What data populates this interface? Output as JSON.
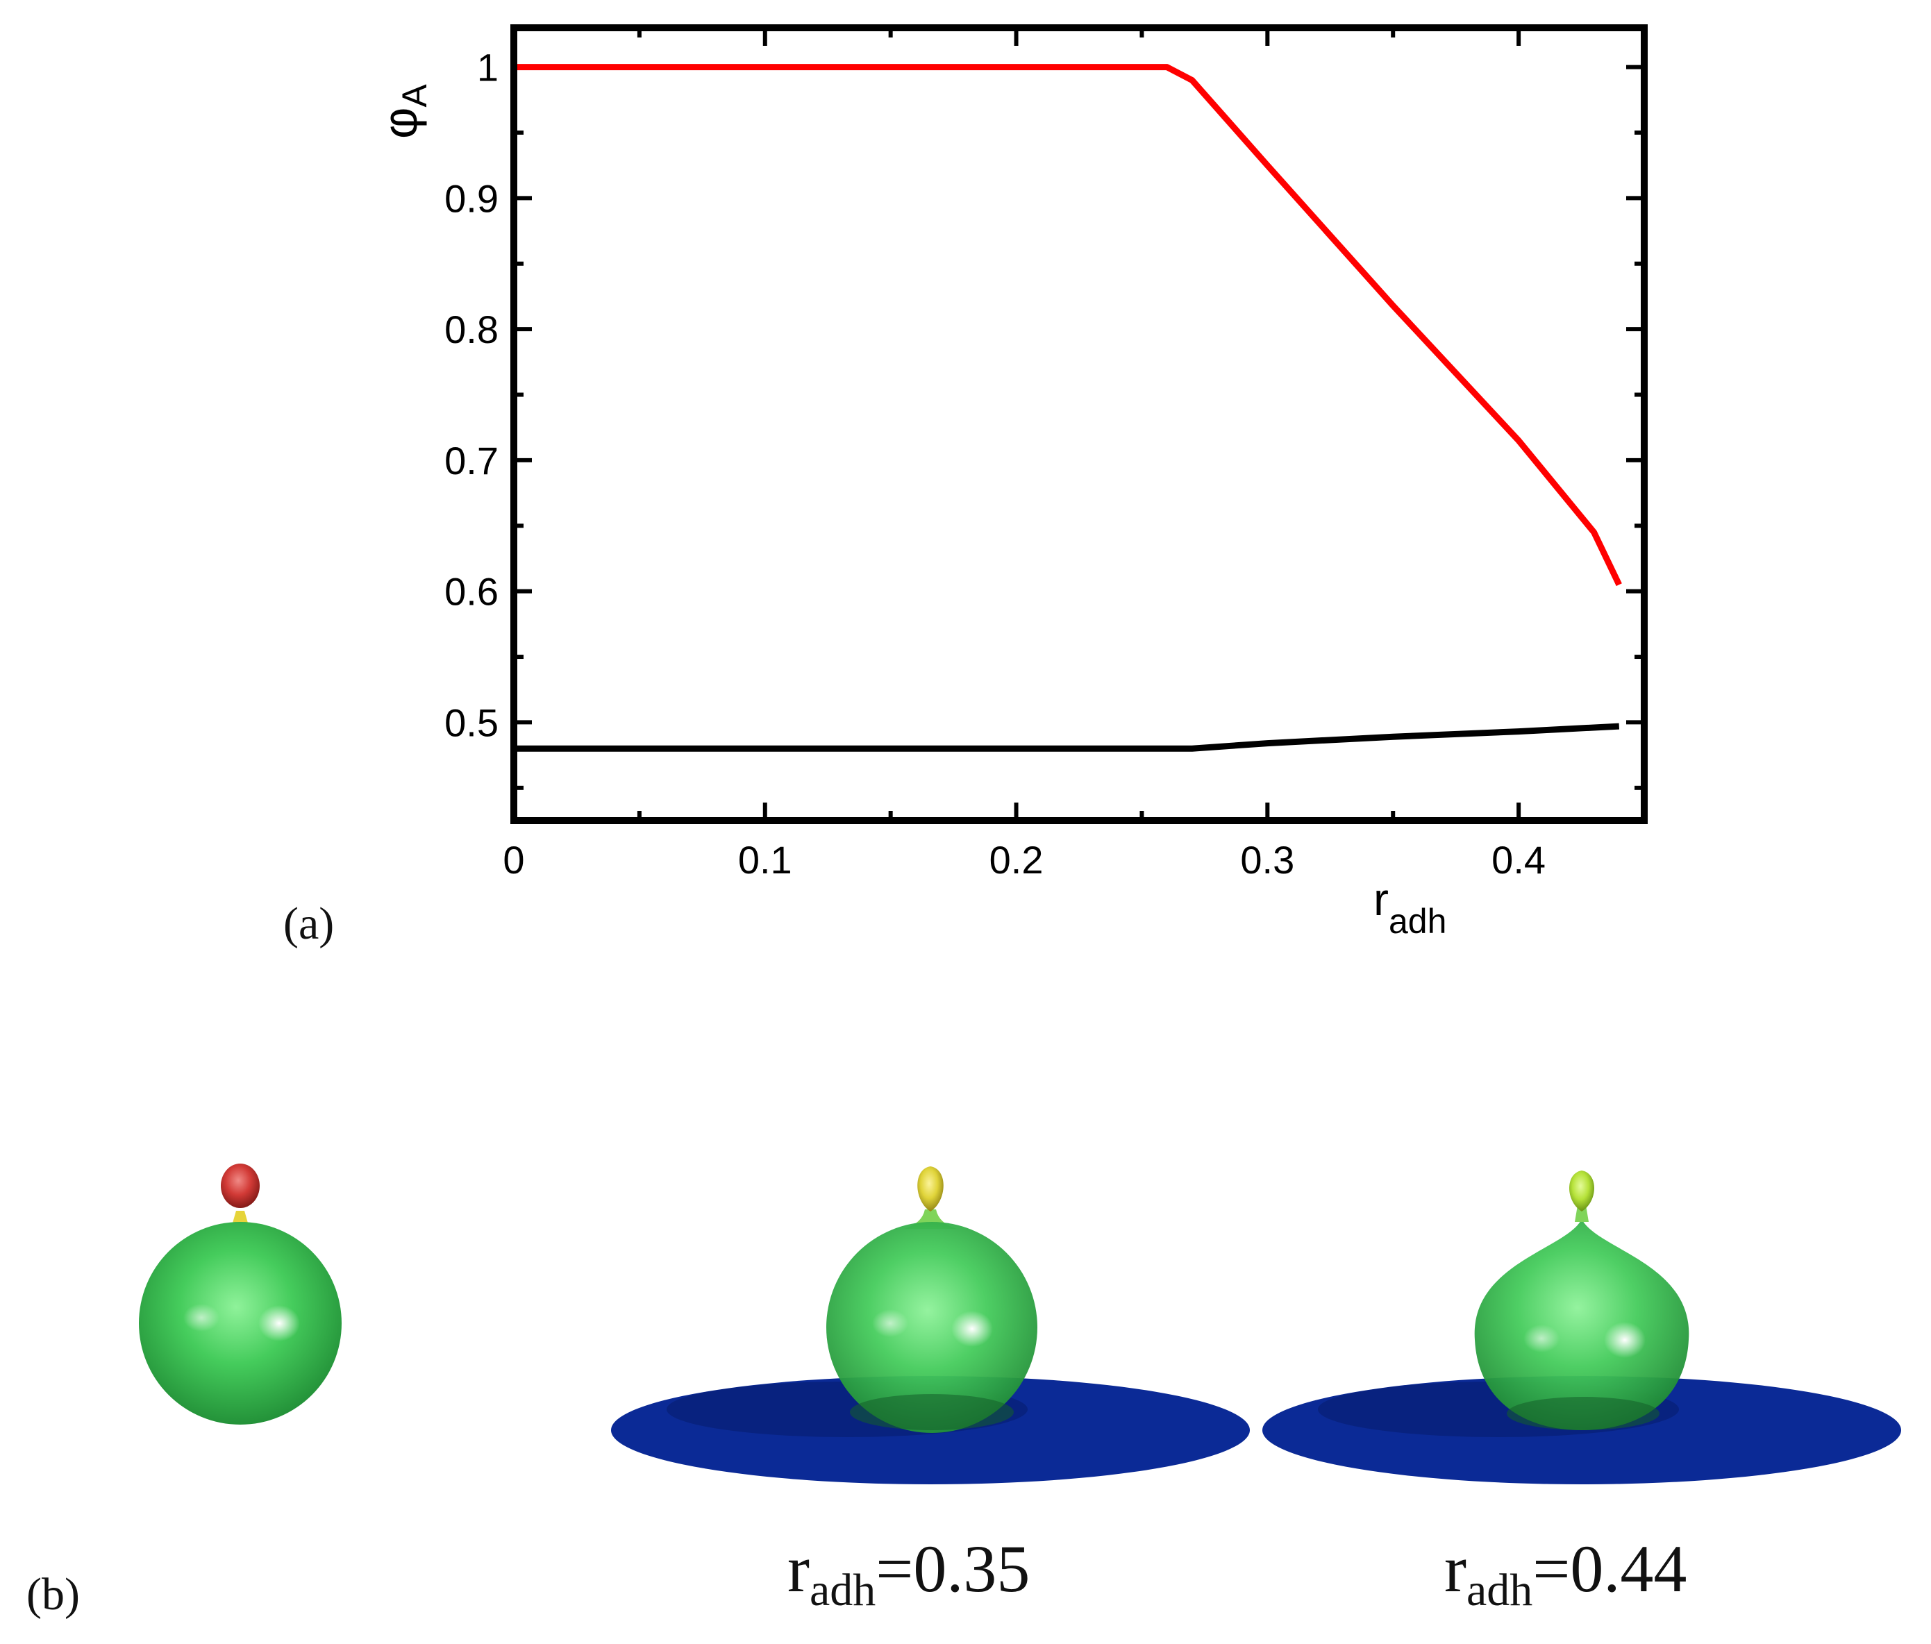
{
  "panel_a_label": "(a)",
  "panel_b_label": "(b)",
  "chart_data": {
    "type": "line",
    "xlabel": {
      "base": "r",
      "sub": "adh"
    },
    "ylabel": {
      "base": "φ",
      "sub": "A"
    },
    "xlim": [
      0,
      0.45
    ],
    "ylim": [
      0.425,
      1.03
    ],
    "x_major_ticks": [
      0,
      0.1,
      0.2,
      0.3,
      0.4
    ],
    "x_tick_labels": [
      "0",
      "0.1",
      "0.2",
      "0.3",
      "0.4"
    ],
    "x_minor_ticks": [
      0.05,
      0.15,
      0.25,
      0.35
    ],
    "y_major_ticks": [
      0.5,
      0.6,
      0.7,
      0.8,
      0.9,
      1.0
    ],
    "y_tick_labels": [
      "0.5",
      "0.6",
      "0.7",
      "0.8",
      "0.9",
      "1"
    ],
    "y_minor_ticks": [
      0.45,
      0.55,
      0.65,
      0.75,
      0.85,
      0.95
    ],
    "grid": false,
    "series": [
      {
        "color": "#ff0000",
        "x": [
          0.0,
          0.26,
          0.27,
          0.3,
          0.35,
          0.4,
          0.43,
          0.44
        ],
        "y": [
          1.0,
          1.0,
          0.99,
          0.925,
          0.818,
          0.715,
          0.645,
          0.605
        ]
      },
      {
        "color": "#000000",
        "x": [
          0.0,
          0.26,
          0.27,
          0.3,
          0.35,
          0.4,
          0.44
        ],
        "y": [
          0.48,
          0.48,
          0.48,
          0.484,
          0.489,
          0.493,
          0.497
        ]
      }
    ]
  },
  "shapes": [
    {
      "caption_value": "",
      "cap_color": "#d23a36",
      "substrate": false
    },
    {
      "caption_value": "=0.35",
      "cap_color": "#e0d43a",
      "substrate": true
    },
    {
      "caption_value": "=0.44",
      "cap_color": "#b6e23a",
      "substrate": true
    }
  ],
  "caption_base": "r",
  "caption_sub": "adh",
  "colors": {
    "vesicle_body": "#3fc25a",
    "substrate": "#0b2a96"
  }
}
